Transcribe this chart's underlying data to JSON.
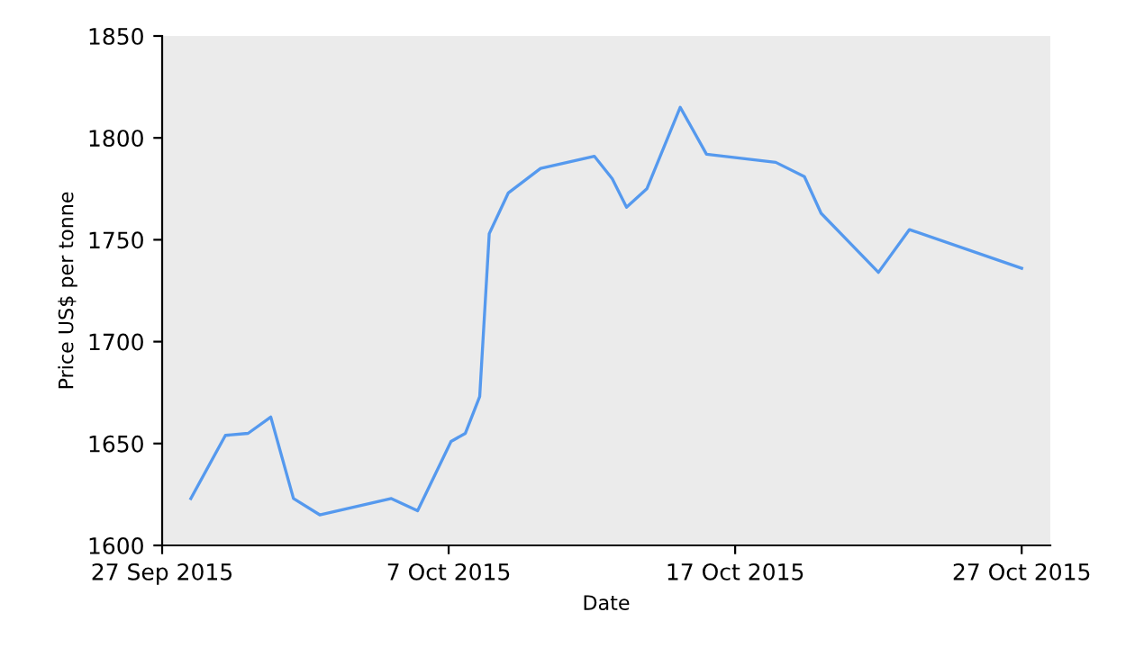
{
  "chart_data": {
    "type": "line",
    "xlabel": "Date",
    "ylabel": "Price US$ per tonne",
    "x": [
      "2015-09-28T00:00",
      "2015-09-29T05:00",
      "2015-09-30T00:00",
      "2015-09-30T19:00",
      "2015-10-01T14:00",
      "2015-10-02T12:00",
      "2015-10-05T00:00",
      "2015-10-05T22:00",
      "2015-10-07T02:00",
      "2015-10-07T14:00",
      "2015-10-08T02:00",
      "2015-10-08T10:00",
      "2015-10-09T02:00",
      "2015-10-10T05:00",
      "2015-10-12T02:00",
      "2015-10-12T17:00",
      "2015-10-13T05:00",
      "2015-10-13T22:00",
      "2015-10-15T02:00",
      "2015-10-16T00:00",
      "2015-10-18T10:00",
      "2015-10-19T10:00",
      "2015-10-20T00:00",
      "2015-10-22T00:00",
      "2015-10-23T02:00",
      "2015-10-27T00:00"
    ],
    "series": [
      {
        "color": "#5599ee",
        "values": [
          1623,
          1654,
          1655,
          1663,
          1623,
          1615,
          1623,
          1617,
          1651,
          1655,
          1673,
          1753,
          1773,
          1785,
          1791,
          1780,
          1766,
          1775,
          1815,
          1792,
          1788,
          1781,
          1763,
          1734,
          1755,
          1736
        ]
      }
    ],
    "xlim": [
      "2015-09-27",
      "2015-10-28"
    ],
    "xticks": [
      {
        "value": "2015-09-27",
        "label": "27 Sep 2015"
      },
      {
        "value": "2015-10-07",
        "label": "7 Oct 2015"
      },
      {
        "value": "2015-10-17",
        "label": "17 Oct 2015"
      },
      {
        "value": "2015-10-27",
        "label": "27 Oct 2015"
      }
    ],
    "ylim": [
      1600,
      1850
    ],
    "yticks": [
      1600,
      1650,
      1700,
      1750,
      1800,
      1850
    ],
    "grid": false,
    "legend": false,
    "marker": "none",
    "line_style": "solid"
  }
}
